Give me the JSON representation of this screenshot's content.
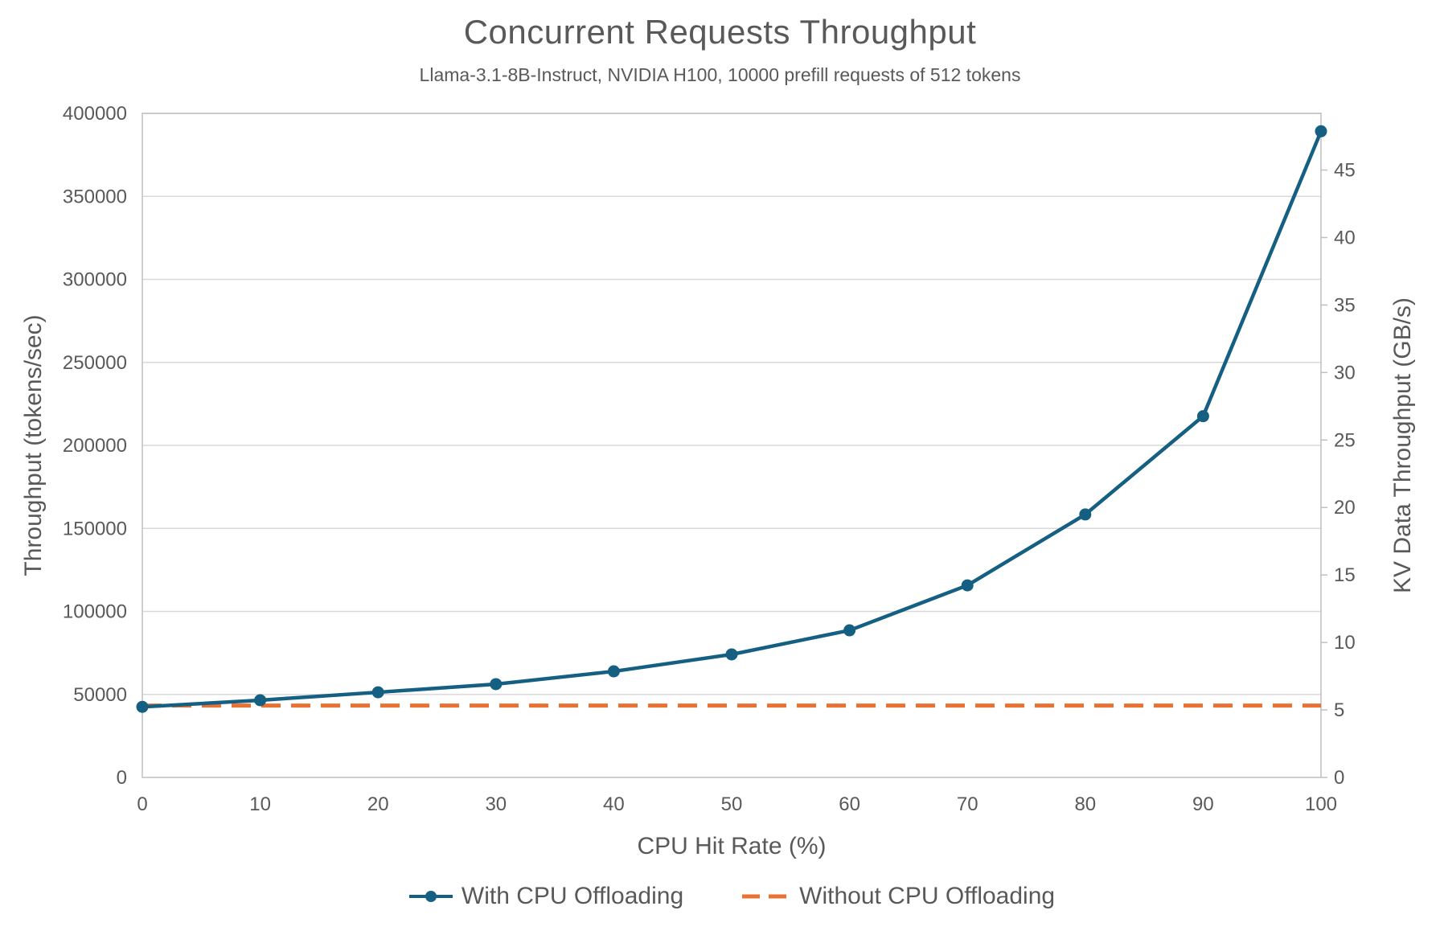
{
  "title": "Concurrent Requests Throughput",
  "subtitle": "Llama-3.1-8B-Instruct, NVIDIA H100, 10000 prefill requests of 512 tokens",
  "chart_data": {
    "type": "line",
    "title": "Concurrent Requests Throughput",
    "subtitle": "Llama-3.1-8B-Instruct, NVIDIA H100, 10000 prefill requests of 512 tokens",
    "xlabel": "CPU Hit Rate (%)",
    "ylabel_left": "Throughput (tokens/sec)",
    "ylabel_right": "KV Data Throughput (GB/s)",
    "x": [
      0,
      10,
      20,
      30,
      40,
      50,
      60,
      70,
      80,
      90,
      100
    ],
    "x_ticks": [
      "0",
      "10",
      "20",
      "30",
      "40",
      "50",
      "60",
      "70",
      "80",
      "90",
      "100"
    ],
    "left_axis": {
      "min": 0,
      "max": 400000,
      "step": 50000,
      "ticks": [
        0,
        50000,
        100000,
        150000,
        200000,
        250000,
        300000,
        350000,
        400000
      ]
    },
    "right_axis": {
      "min": 0,
      "max": 49.2,
      "step": 5,
      "ticks": [
        0,
        5,
        10,
        15,
        20,
        25,
        30,
        35,
        40,
        45
      ]
    },
    "series": [
      {
        "name": "With CPU Offloading",
        "axis": "left",
        "style": "solid-with-markers",
        "color": "#156082",
        "values": [
          42500,
          46500,
          51300,
          56200,
          63900,
          74100,
          88600,
          115700,
          158400,
          217600,
          389200
        ]
      },
      {
        "name": "Without CPU Offloading",
        "axis": "left",
        "style": "dashed",
        "color": "#E97132",
        "values": [
          43300,
          43300,
          43300,
          43300,
          43300,
          43300,
          43300,
          43300,
          43300,
          43300,
          43300
        ]
      }
    ],
    "grid": "horizontal",
    "legend_position": "bottom"
  },
  "colors": {
    "series_with": "#156082",
    "series_without": "#E97132",
    "text": "#595959",
    "gridline": "#D9D9D9",
    "axis_line": "#BFBFBF",
    "background": "#FFFFFF"
  }
}
